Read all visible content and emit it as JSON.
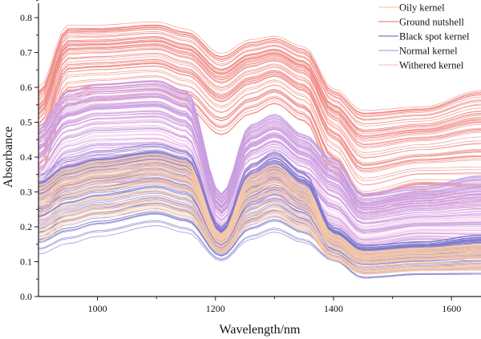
{
  "chart_data": {
    "type": "line",
    "title": "",
    "xlabel": "Wavelength/nm",
    "ylabel": "Absorbance",
    "xlim": [
      900,
      1650
    ],
    "ylim": [
      0.0,
      0.83
    ],
    "xticks": [
      1000,
      1200,
      1400,
      1600
    ],
    "yticks": [
      "0.0",
      "0.1",
      "0.2",
      "0.3",
      "0.4",
      "0.5",
      "0.6",
      "0.7",
      "0.8"
    ],
    "grid": false,
    "legend_position": "top-right",
    "envelope_wavelengths": [
      900,
      950,
      1000,
      1100,
      1150,
      1210,
      1260,
      1300,
      1350,
      1400,
      1450,
      1550,
      1650
    ],
    "series": [
      {
        "name": "Ground nutshell",
        "color": "#f08a84",
        "min": [
          0.35,
          0.55,
          0.56,
          0.57,
          0.54,
          0.46,
          0.52,
          0.55,
          0.5,
          0.35,
          0.23,
          0.27,
          0.25
        ],
        "max": [
          0.6,
          0.78,
          0.78,
          0.79,
          0.77,
          0.7,
          0.74,
          0.75,
          0.72,
          0.6,
          0.54,
          0.55,
          0.6
        ]
      },
      {
        "name": "Withered kernel",
        "color": "#f0c2ea",
        "min": [
          0.22,
          0.3,
          0.33,
          0.33,
          0.3,
          0.14,
          0.25,
          0.28,
          0.24,
          0.16,
          0.11,
          0.13,
          0.12
        ],
        "max": [
          0.48,
          0.58,
          0.6,
          0.61,
          0.58,
          0.28,
          0.48,
          0.51,
          0.45,
          0.36,
          0.27,
          0.3,
          0.32
        ]
      },
      {
        "name": "Normal kernel",
        "color": "#c89ee0",
        "min": [
          0.2,
          0.28,
          0.3,
          0.3,
          0.28,
          0.12,
          0.23,
          0.25,
          0.22,
          0.15,
          0.1,
          0.12,
          0.1
        ],
        "max": [
          0.5,
          0.6,
          0.62,
          0.63,
          0.6,
          0.3,
          0.5,
          0.53,
          0.47,
          0.4,
          0.3,
          0.32,
          0.35
        ]
      },
      {
        "name": "Black spot kernel",
        "color": "#7b78cc",
        "min": [
          0.12,
          0.15,
          0.17,
          0.2,
          0.18,
          0.1,
          0.16,
          0.18,
          0.15,
          0.1,
          0.05,
          0.06,
          0.06
        ],
        "max": [
          0.35,
          0.4,
          0.42,
          0.44,
          0.42,
          0.2,
          0.38,
          0.42,
          0.36,
          0.2,
          0.15,
          0.16,
          0.18
        ]
      },
      {
        "name": "Oily kernel",
        "color": "#f6c9aa",
        "min": [
          0.15,
          0.2,
          0.22,
          0.24,
          0.22,
          0.12,
          0.2,
          0.22,
          0.18,
          0.1,
          0.06,
          0.07,
          0.07
        ],
        "max": [
          0.32,
          0.37,
          0.39,
          0.41,
          0.39,
          0.18,
          0.35,
          0.38,
          0.32,
          0.18,
          0.13,
          0.14,
          0.15
        ]
      }
    ],
    "legend_order": [
      "Oily kernel",
      "Ground nutshell",
      "Black spot kernel",
      "Normal kernel",
      "Withered kernel"
    ]
  }
}
